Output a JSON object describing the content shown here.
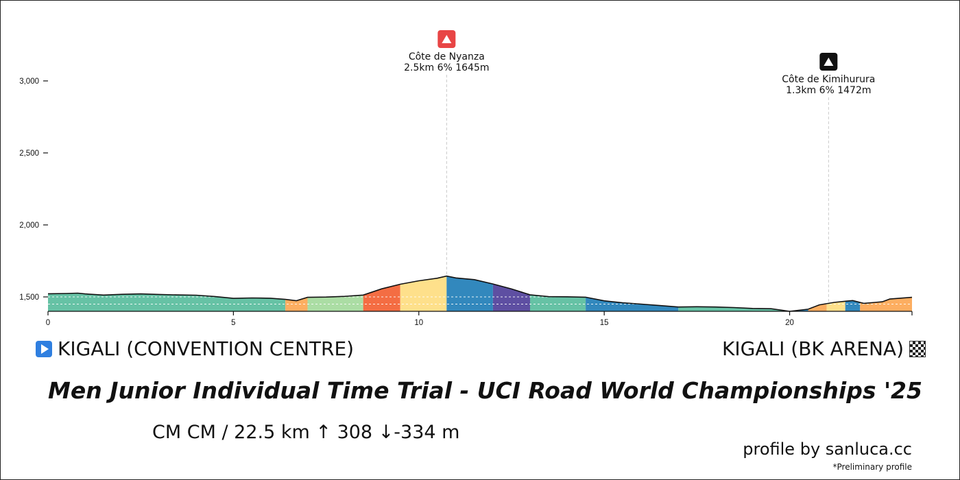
{
  "chart_data": {
    "type": "area",
    "title": "",
    "xlabel": "",
    "ylabel": "",
    "xlim": [
      0,
      23.3
    ],
    "ylim": [
      1400,
      3100
    ],
    "grid": false,
    "x_ticks": [
      0,
      5,
      10,
      15,
      20
    ],
    "x_tick_labels": [
      "0",
      "5",
      "10",
      "15",
      "20"
    ],
    "y_ticks": [
      1500,
      2000,
      2500,
      3000
    ],
    "y_tick_labels": [
      "1,500",
      "2,000",
      "2,500",
      "3,000"
    ],
    "profile": {
      "x": [
        0,
        0.5,
        0.8,
        1.0,
        1.5,
        2.0,
        2.5,
        3.0,
        3.5,
        4.0,
        4.5,
        5.0,
        5.5,
        6.0,
        6.4,
        6.7,
        7.0,
        7.5,
        8.0,
        8.5,
        9.0,
        9.5,
        10.0,
        10.5,
        10.75,
        11.0,
        11.5,
        12.0,
        12.5,
        13.0,
        13.5,
        14.0,
        14.5,
        15.0,
        15.5,
        16.0,
        16.5,
        17.0,
        17.5,
        18.0,
        18.5,
        19.0,
        19.5,
        20.0,
        20.5,
        20.8,
        21.2,
        21.5,
        21.7,
        22.0,
        22.3,
        22.5,
        22.7,
        23.3
      ],
      "y": [
        1522,
        1524,
        1526,
        1521,
        1513,
        1518,
        1521,
        1517,
        1514,
        1512,
        1503,
        1490,
        1493,
        1491,
        1483,
        1474,
        1497,
        1499,
        1504,
        1513,
        1556,
        1588,
        1612,
        1630,
        1645,
        1632,
        1620,
        1590,
        1555,
        1515,
        1502,
        1501,
        1498,
        1473,
        1459,
        1450,
        1440,
        1430,
        1432,
        1430,
        1426,
        1420,
        1418,
        1400,
        1415,
        1445,
        1462,
        1470,
        1475,
        1455,
        1462,
        1466,
        1485,
        1497
      ]
    },
    "gradient_segments": [
      {
        "x0": 0,
        "x1": 6.4,
        "color": "#66c2a5"
      },
      {
        "x0": 6.4,
        "x1": 7.0,
        "color": "#fdae61"
      },
      {
        "x0": 7.0,
        "x1": 8.5,
        "color": "#abdda4"
      },
      {
        "x0": 8.5,
        "x1": 9.5,
        "color": "#f46d43"
      },
      {
        "x0": 9.5,
        "x1": 10.75,
        "color": "#fee08b"
      },
      {
        "x0": 10.75,
        "x1": 12.0,
        "color": "#3288bd"
      },
      {
        "x0": 12.0,
        "x1": 13.0,
        "color": "#5e4fa2"
      },
      {
        "x0": 13.0,
        "x1": 14.5,
        "color": "#66c2a5"
      },
      {
        "x0": 14.5,
        "x1": 17.0,
        "color": "#3288bd"
      },
      {
        "x0": 17.0,
        "x1": 20.0,
        "color": "#66c2a5"
      },
      {
        "x0": 20.0,
        "x1": 20.5,
        "color": "#3288bd"
      },
      {
        "x0": 20.5,
        "x1": 21.0,
        "color": "#fdae61"
      },
      {
        "x0": 21.0,
        "x1": 21.5,
        "color": "#fee08b"
      },
      {
        "x0": 21.5,
        "x1": 21.9,
        "color": "#3288bd"
      },
      {
        "x0": 21.9,
        "x1": 23.3,
        "color": "#fdae61"
      }
    ],
    "climbs": [
      {
        "name": "Côte de Nyanza",
        "info": "2.5km 6% 1645m",
        "x": 10.75,
        "icon": "mountain-icon",
        "icon_color": "#e84545"
      },
      {
        "name": "Côte de Kimihurura",
        "info": "1.3km 6% 1472m",
        "x": 21.05,
        "icon": "mountain-icon",
        "icon_color": "#111111"
      }
    ]
  },
  "start": {
    "label": "KIGALI (CONVENTION CENTRE)",
    "icon": "play-icon"
  },
  "finish": {
    "label": "KIGALI (BK ARENA)",
    "icon": "checkered-flag-icon"
  },
  "race": {
    "title": "Men Junior Individual Time Trial - UCI Road World Championships '25",
    "stats": "CM CM / 22.5 km  ↑ 308 ↓-334 m"
  },
  "credit": "profile by sanluca.cc",
  "footnote": "*Preliminary profile"
}
